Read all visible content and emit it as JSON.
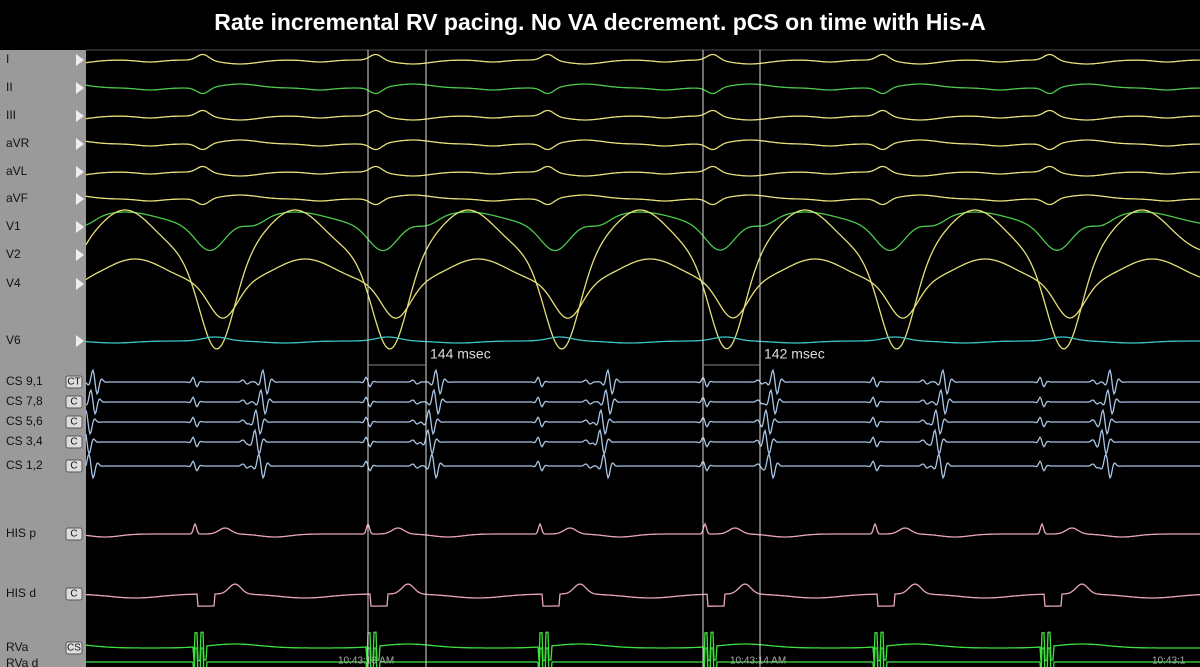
{
  "title": "Rate incremental RV pacing. No VA decrement. pCS on time with His-A",
  "channels": [
    {
      "label": "I"
    },
    {
      "label": "II"
    },
    {
      "label": "III"
    },
    {
      "label": "aVR"
    },
    {
      "label": "aVL"
    },
    {
      "label": "aVF"
    },
    {
      "label": "V1"
    },
    {
      "label": "V2"
    },
    {
      "label": "V4"
    },
    {
      "label": "V6"
    },
    {
      "label": "CS 9,1",
      "tag": "CT"
    },
    {
      "label": "CS 7,8",
      "tag": "C"
    },
    {
      "label": "CS 5,6",
      "tag": "C"
    },
    {
      "label": "CS 3,4",
      "tag": "C"
    },
    {
      "label": "CS 1,2",
      "tag": "C"
    },
    {
      "label": "HIS p",
      "tag": "C"
    },
    {
      "label": "HIS d",
      "tag": "C"
    },
    {
      "label": "RVa",
      "tag": "CS"
    },
    {
      "label": "RVa d"
    }
  ],
  "measurements": [
    "144 msec",
    "142 msec"
  ],
  "timestamps": [
    "10:43:13 AM",
    "10:43:14 AM",
    "10:43:1"
  ]
}
